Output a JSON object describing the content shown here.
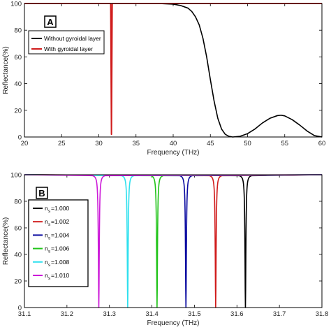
{
  "chart_data": [
    {
      "type": "line",
      "panel_label": "A",
      "xlabel": "Frequency (THz)",
      "ylabel": "Reflectance(%)",
      "xlim": [
        20,
        60
      ],
      "ylim": [
        0,
        100
      ],
      "xticks": [
        20,
        25,
        30,
        35,
        40,
        45,
        50,
        55,
        60
      ],
      "yticks": [
        0,
        20,
        40,
        60,
        80,
        100
      ],
      "legend_position": "top-left",
      "series": [
        {
          "name": "Without gyroidal layer",
          "color": "#000000",
          "x": [
            20,
            30,
            38,
            40,
            41,
            42,
            42.5,
            43,
            43.5,
            44,
            44.5,
            45,
            45.5,
            46,
            46.5,
            47,
            47.5,
            48,
            49,
            50,
            51,
            52,
            53,
            54,
            54.5,
            55,
            56,
            57,
            58,
            59,
            60
          ],
          "y": [
            100,
            100,
            100,
            99.5,
            98.5,
            96.5,
            94,
            90,
            84,
            74,
            60,
            43,
            27,
            14,
            6,
            2,
            0.5,
            0,
            0.5,
            2.5,
            6,
            10.5,
            14,
            16,
            16.3,
            15.8,
            13,
            9,
            4.5,
            1,
            0
          ]
        },
        {
          "name": "With gyroidal layer",
          "color": "#d01c1c",
          "x": [
            20,
            31.6,
            31.7,
            31.8,
            60
          ],
          "y": [
            100,
            100,
            2,
            100,
            100
          ]
        }
      ]
    },
    {
      "type": "line",
      "panel_label": "B",
      "xlabel": "Frequency (THz)",
      "ylabel": "Reflectance(%)",
      "xlim": [
        31.1,
        31.8
      ],
      "ylim": [
        0,
        100
      ],
      "xticks": [
        "31.1",
        "31.2",
        "31.3",
        "31.4",
        "31.5",
        "31.6",
        "31.7",
        "31.8"
      ],
      "yticks": [
        0,
        20,
        40,
        60,
        80,
        100
      ],
      "legend_position": "left",
      "dip_half_width": 0.0025,
      "series": [
        {
          "label": "n",
          "sub": "s",
          "value": "=1.000",
          "color": "#000000",
          "dip_center": 31.62,
          "dip_min": 0
        },
        {
          "label": "n",
          "sub": "s",
          "value": "=1.002",
          "color": "#d01c1c",
          "dip_center": 31.55,
          "dip_min": 0
        },
        {
          "label": "n",
          "sub": "s",
          "value": "=1.004",
          "color": "#0a0aa0",
          "dip_center": 31.48,
          "dip_min": 0
        },
        {
          "label": "n",
          "sub": "s",
          "value": "=1.006",
          "color": "#22c41a",
          "dip_center": 31.412,
          "dip_min": 0
        },
        {
          "label": "n",
          "sub": "s",
          "value": "=1.008",
          "color": "#2fe0ee",
          "dip_center": 31.343,
          "dip_min": 0
        },
        {
          "label": "n",
          "sub": "s",
          "value": "=1.010",
          "color": "#cc1ad8",
          "dip_center": 31.275,
          "dip_min": 0
        }
      ]
    }
  ]
}
